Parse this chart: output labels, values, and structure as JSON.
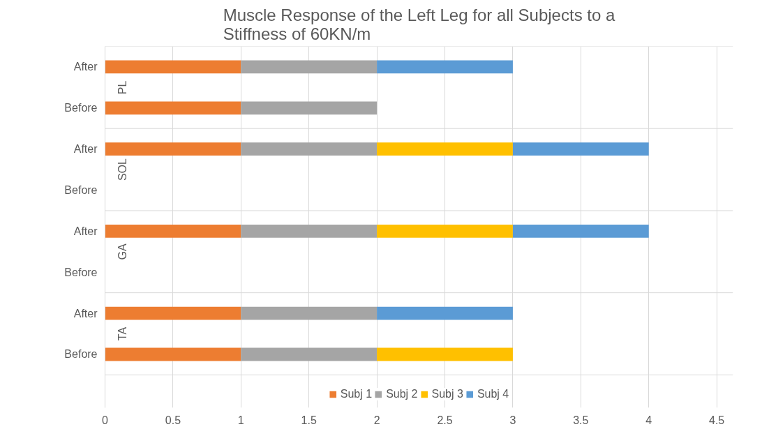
{
  "chart_data": {
    "type": "bar",
    "orientation": "horizontal",
    "stacked": true,
    "title": "Muscle Response of the Left Leg for all Subjects to a Stiffness of 60KN/m",
    "categories": [
      "After",
      "Before",
      "After",
      "Before",
      "After",
      "Before",
      "After",
      "Before"
    ],
    "annotations": [
      "PL",
      "SOL",
      "GA",
      "TA"
    ],
    "series": [
      {
        "name": "Subj 1",
        "color": "#ed7d31",
        "values": [
          1,
          1,
          1,
          null,
          1,
          null,
          1,
          1
        ]
      },
      {
        "name": "Subj 2",
        "color": "#a5a5a5",
        "values": [
          1,
          1,
          1,
          null,
          1,
          null,
          1,
          1
        ]
      },
      {
        "name": "Subj 3",
        "color": "#ffc000",
        "values": [
          null,
          null,
          1,
          null,
          1,
          null,
          null,
          1
        ]
      },
      {
        "name": "Subj 4",
        "color": "#5b9bd5",
        "values": [
          1,
          null,
          1,
          null,
          1,
          null,
          1,
          null
        ]
      }
    ],
    "xlim": [
      0,
      4.5
    ],
    "xticks": [
      0,
      0.5,
      1,
      1.5,
      2,
      2.5,
      3,
      3.5,
      4,
      4.5
    ],
    "grid": "x",
    "legend": "bottom"
  }
}
